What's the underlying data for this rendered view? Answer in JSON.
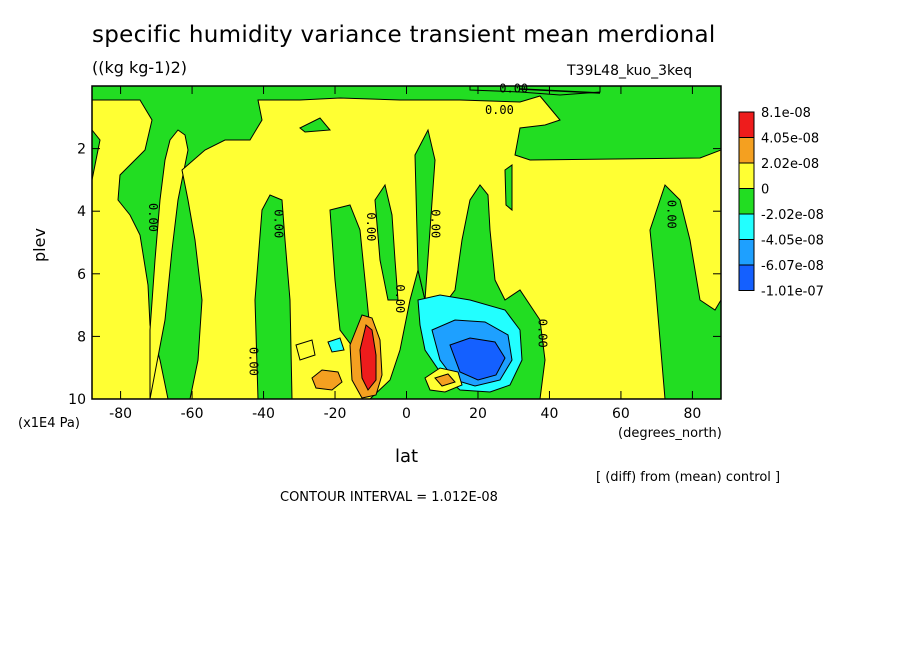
{
  "title": "specific humidity variance transient mean merdional",
  "units": "((kg kg-1)2)",
  "run_id": "T39L48_kuo_3keq",
  "diff_note": "[ (diff) from (mean) control ]",
  "contour_interval": "CONTOUR INTERVAL = 1.012E-08",
  "y_scale_note": "(x1E4 Pa)",
  "colors": {
    "red": "#ee1c1c",
    "orange": "#f4a020",
    "yellow": "#ffff33",
    "green": "#22dd22",
    "cyan": "#22ffff",
    "lightblue": "#1ea0ff",
    "blue": "#1460ff",
    "darkblue": "#1434ff"
  },
  "chart_data": {
    "type": "heatmap",
    "title": "specific humidity variance transient mean merdional",
    "xlabel": "lat",
    "xlabel_units": "(degrees_north)",
    "ylabel": "plev",
    "xlim": [
      -88,
      88
    ],
    "ylim": [
      10,
      0
    ],
    "x_ticks": [
      "-80",
      "-60",
      "-40",
      "-20",
      "0",
      "20",
      "40",
      "60",
      "80"
    ],
    "x_tick_values": [
      -80,
      -60,
      -40,
      -20,
      0,
      20,
      40,
      60,
      80
    ],
    "y_ticks": [
      "2",
      "4",
      "6",
      "8",
      "10"
    ],
    "y_tick_values": [
      2,
      4,
      6,
      8,
      10
    ],
    "legend": {
      "placement": "right",
      "labels": [
        "8.1e-08",
        "4.05e-08",
        "2.02e-08",
        "0",
        "-2.02e-08",
        "-4.05e-08",
        "-6.07e-08",
        "-1.01e-07"
      ],
      "colors": [
        "#ee1c1c",
        "#f4a020",
        "#ffff33",
        "#22dd22",
        "#22ffff",
        "#1ea0ff",
        "#1460ff"
      ]
    },
    "contour_labels": [
      {
        "text": "0.00",
        "lat": 30,
        "plev": 0.2
      },
      {
        "text": "0.00",
        "lat": 26,
        "plev": 0.9
      },
      {
        "text": "0.00",
        "lat": -72,
        "plev": 4.2
      },
      {
        "text": "0.00",
        "lat": -37,
        "plev": 4.4
      },
      {
        "text": "0.00",
        "lat": -11,
        "plev": 4.5
      },
      {
        "text": "0.00",
        "lat": 7,
        "plev": 4.4
      },
      {
        "text": "0.00",
        "lat": 73,
        "plev": 4.1
      },
      {
        "text": "0.00",
        "lat": -3,
        "plev": 6.8
      },
      {
        "text": "0.00",
        "lat": 37,
        "plev": 7.9
      },
      {
        "text": "0.00",
        "lat": -44,
        "plev": 8.8
      }
    ]
  }
}
